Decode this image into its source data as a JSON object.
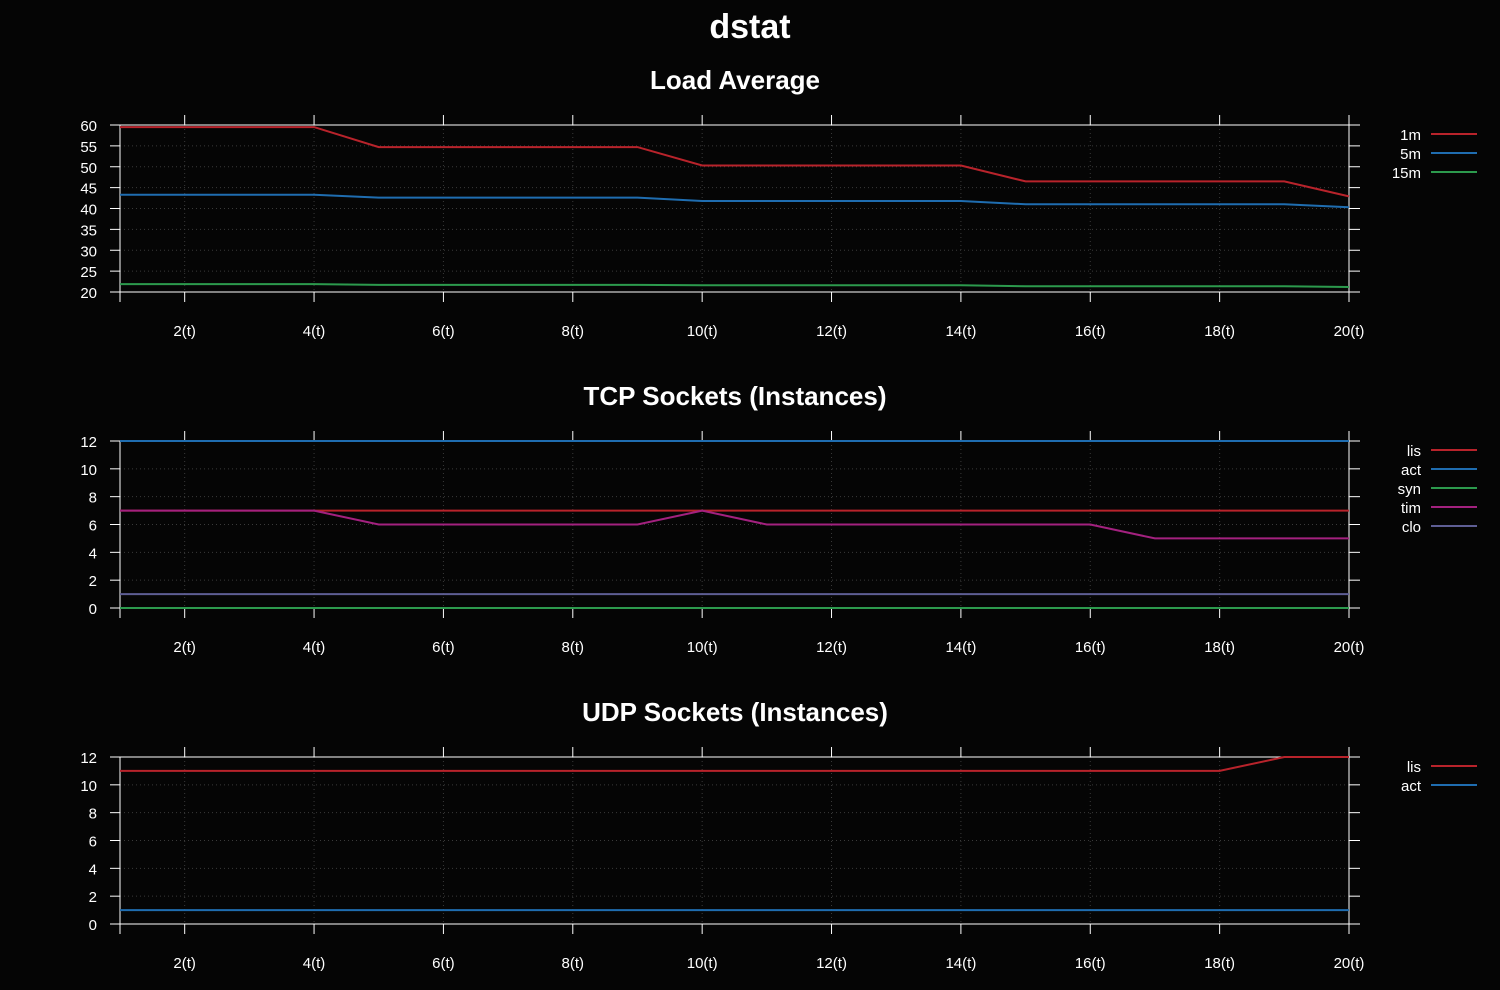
{
  "page": {
    "title": "dstat",
    "background": "#050505"
  },
  "chart_data": [
    {
      "type": "line",
      "title": "Load Average",
      "x": [
        1,
        2,
        3,
        4,
        5,
        6,
        7,
        8,
        9,
        10,
        11,
        12,
        13,
        14,
        15,
        16,
        17,
        18,
        19,
        20
      ],
      "xticks": [
        2,
        4,
        6,
        8,
        10,
        12,
        14,
        16,
        18,
        20
      ],
      "xtick_labels": [
        "2(t)",
        "4(t)",
        "6(t)",
        "8(t)",
        "10(t)",
        "12(t)",
        "14(t)",
        "16(t)",
        "18(t)",
        "20(t)"
      ],
      "xlim": [
        1,
        20
      ],
      "ylim": [
        20,
        60
      ],
      "yticks": [
        20,
        25,
        30,
        35,
        40,
        45,
        50,
        55,
        60
      ],
      "ytick_labels": [
        "20",
        "25",
        "30",
        "35",
        "40",
        "45",
        "50",
        "55",
        "60"
      ],
      "grid": true,
      "legend_position": "right",
      "series": [
        {
          "name": "1m",
          "color": "#b8232b",
          "values": [
            59.5,
            59.5,
            59.5,
            59.5,
            54.7,
            54.7,
            54.7,
            54.7,
            54.7,
            50.3,
            50.3,
            50.3,
            50.3,
            50.3,
            46.5,
            46.5,
            46.5,
            46.5,
            46.5,
            42.9
          ]
        },
        {
          "name": "5m",
          "color": "#1f6db0",
          "values": [
            43.3,
            43.3,
            43.3,
            43.3,
            42.6,
            42.6,
            42.6,
            42.6,
            42.6,
            41.8,
            41.8,
            41.8,
            41.8,
            41.8,
            41.0,
            41.0,
            41.0,
            41.0,
            41.0,
            40.3
          ]
        },
        {
          "name": "15m",
          "color": "#2c9a4d",
          "values": [
            21.9,
            21.9,
            21.9,
            21.9,
            21.7,
            21.7,
            21.7,
            21.7,
            21.7,
            21.6,
            21.6,
            21.6,
            21.6,
            21.6,
            21.4,
            21.4,
            21.4,
            21.4,
            21.4,
            21.2
          ]
        }
      ]
    },
    {
      "type": "line",
      "title": "TCP Sockets (Instances)",
      "x": [
        1,
        2,
        3,
        4,
        5,
        6,
        7,
        8,
        9,
        10,
        11,
        12,
        13,
        14,
        15,
        16,
        17,
        18,
        19,
        20
      ],
      "xticks": [
        2,
        4,
        6,
        8,
        10,
        12,
        14,
        16,
        18,
        20
      ],
      "xtick_labels": [
        "2(t)",
        "4(t)",
        "6(t)",
        "8(t)",
        "10(t)",
        "12(t)",
        "14(t)",
        "16(t)",
        "18(t)",
        "20(t)"
      ],
      "xlim": [
        1,
        20
      ],
      "ylim": [
        0,
        12
      ],
      "yticks": [
        0,
        2,
        4,
        6,
        8,
        10,
        12
      ],
      "ytick_labels": [
        "0",
        "2",
        "4",
        "6",
        "8",
        "10",
        "12"
      ],
      "grid": true,
      "legend_position": "right",
      "series": [
        {
          "name": "lis",
          "color": "#b8232b",
          "values": [
            7,
            7,
            7,
            7,
            7,
            7,
            7,
            7,
            7,
            7,
            7,
            7,
            7,
            7,
            7,
            7,
            7,
            7,
            7,
            7
          ]
        },
        {
          "name": "act",
          "color": "#1f6db0",
          "values": [
            12,
            12,
            12,
            12,
            12,
            12,
            12,
            12,
            12,
            12,
            12,
            12,
            12,
            12,
            12,
            12,
            12,
            12,
            12,
            12
          ]
        },
        {
          "name": "syn",
          "color": "#2c9a4d",
          "values": [
            0,
            0,
            0,
            0,
            0,
            0,
            0,
            0,
            0,
            0,
            0,
            0,
            0,
            0,
            0,
            0,
            0,
            0,
            0,
            0
          ]
        },
        {
          "name": "tim",
          "color": "#a3217f",
          "values": [
            7,
            7,
            7,
            7,
            6,
            6,
            6,
            6,
            6,
            7,
            6,
            6,
            6,
            6,
            6,
            6,
            5,
            5,
            5,
            5
          ]
        },
        {
          "name": "clo",
          "color": "#5e5e94",
          "values": [
            1,
            1,
            1,
            1,
            1,
            1,
            1,
            1,
            1,
            1,
            1,
            1,
            1,
            1,
            1,
            1,
            1,
            1,
            1,
            1
          ]
        }
      ]
    },
    {
      "type": "line",
      "title": "UDP Sockets (Instances)",
      "x": [
        1,
        2,
        3,
        4,
        5,
        6,
        7,
        8,
        9,
        10,
        11,
        12,
        13,
        14,
        15,
        16,
        17,
        18,
        19,
        20
      ],
      "xticks": [
        2,
        4,
        6,
        8,
        10,
        12,
        14,
        16,
        18,
        20
      ],
      "xtick_labels": [
        "2(t)",
        "4(t)",
        "6(t)",
        "8(t)",
        "10(t)",
        "12(t)",
        "14(t)",
        "16(t)",
        "18(t)",
        "20(t)"
      ],
      "xlim": [
        1,
        20
      ],
      "ylim": [
        0,
        12
      ],
      "yticks": [
        0,
        2,
        4,
        6,
        8,
        10,
        12
      ],
      "ytick_labels": [
        "0",
        "2",
        "4",
        "6",
        "8",
        "10",
        "12"
      ],
      "grid": true,
      "legend_position": "right",
      "series": [
        {
          "name": "lis",
          "color": "#b8232b",
          "values": [
            11,
            11,
            11,
            11,
            11,
            11,
            11,
            11,
            11,
            11,
            11,
            11,
            11,
            11,
            11,
            11,
            11,
            11,
            12,
            12
          ]
        },
        {
          "name": "act",
          "color": "#1f6db0",
          "values": [
            1,
            1,
            1,
            1,
            1,
            1,
            1,
            1,
            1,
            1,
            1,
            1,
            1,
            1,
            1,
            1,
            1,
            1,
            1,
            1
          ]
        }
      ]
    }
  ]
}
